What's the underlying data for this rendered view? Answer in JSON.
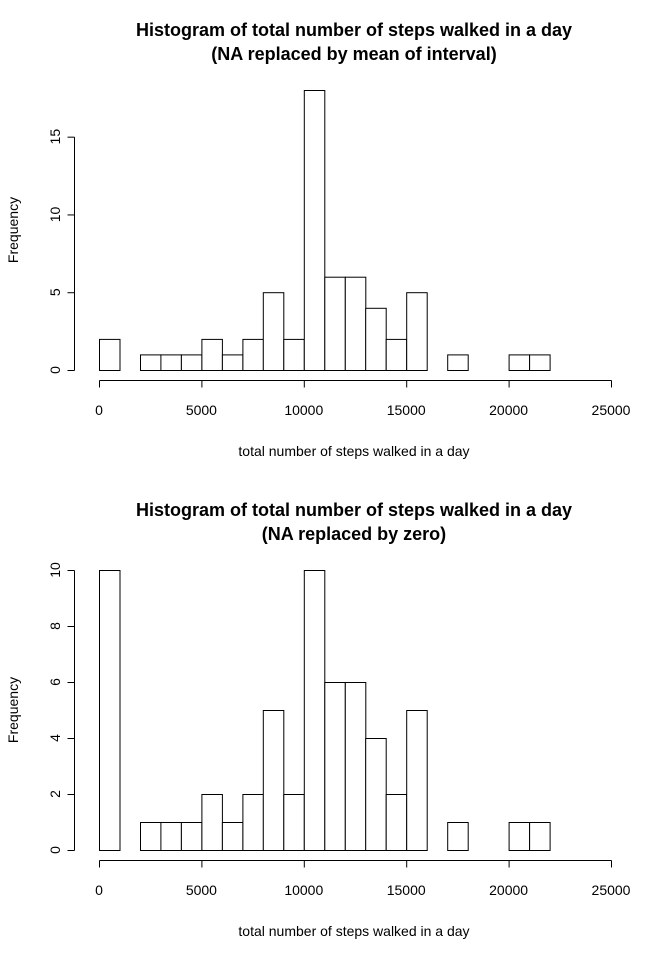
{
  "chart_data": [
    {
      "type": "bar",
      "title": "Histogram of total number of steps walked in a day",
      "subtitle": "(NA replaced by mean of interval)",
      "xlabel": "total number of steps walked in a day",
      "ylabel": "Frequency",
      "bin_edges": [
        0,
        1000,
        2000,
        3000,
        4000,
        5000,
        6000,
        7000,
        8000,
        9000,
        10000,
        11000,
        12000,
        13000,
        14000,
        15000,
        16000,
        17000,
        18000,
        19000,
        20000,
        21000,
        22000
      ],
      "values": [
        2,
        0,
        1,
        1,
        1,
        2,
        1,
        2,
        5,
        2,
        18,
        6,
        6,
        4,
        2,
        5,
        0,
        1,
        0,
        0,
        1,
        1
      ],
      "xlim": [
        0,
        25000
      ],
      "ylim": [
        0,
        18
      ],
      "x_ticks": [
        0,
        5000,
        10000,
        15000,
        20000,
        25000
      ],
      "x_tick_labels": [
        "0",
        "5000",
        "10000",
        "15000",
        "20000",
        "25000"
      ],
      "y_ticks": [
        0,
        5,
        10,
        15
      ],
      "y_tick_labels": [
        "0",
        "5",
        "10",
        "15"
      ],
      "grid": false,
      "bar_fill": "#ffffff",
      "bar_stroke": "#000000"
    },
    {
      "type": "bar",
      "title": "Histogram of total number of steps walked in a day",
      "subtitle": "(NA replaced by zero)",
      "xlabel": "total number of steps walked in a day",
      "ylabel": "Frequency",
      "bin_edges": [
        0,
        1000,
        2000,
        3000,
        4000,
        5000,
        6000,
        7000,
        8000,
        9000,
        10000,
        11000,
        12000,
        13000,
        14000,
        15000,
        16000,
        17000,
        18000,
        19000,
        20000,
        21000,
        22000
      ],
      "values": [
        10,
        0,
        1,
        1,
        1,
        2,
        1,
        2,
        5,
        2,
        10,
        6,
        6,
        4,
        2,
        5,
        0,
        1,
        0,
        0,
        1,
        1
      ],
      "xlim": [
        0,
        25000
      ],
      "ylim": [
        0,
        10
      ],
      "x_ticks": [
        0,
        5000,
        10000,
        15000,
        20000,
        25000
      ],
      "x_tick_labels": [
        "0",
        "5000",
        "10000",
        "15000",
        "20000",
        "25000"
      ],
      "y_ticks": [
        0,
        2,
        4,
        6,
        8,
        10
      ],
      "y_tick_labels": [
        "0",
        "2",
        "4",
        "6",
        "8",
        "10"
      ],
      "grid": false,
      "bar_fill": "#ffffff",
      "bar_stroke": "#000000"
    }
  ]
}
